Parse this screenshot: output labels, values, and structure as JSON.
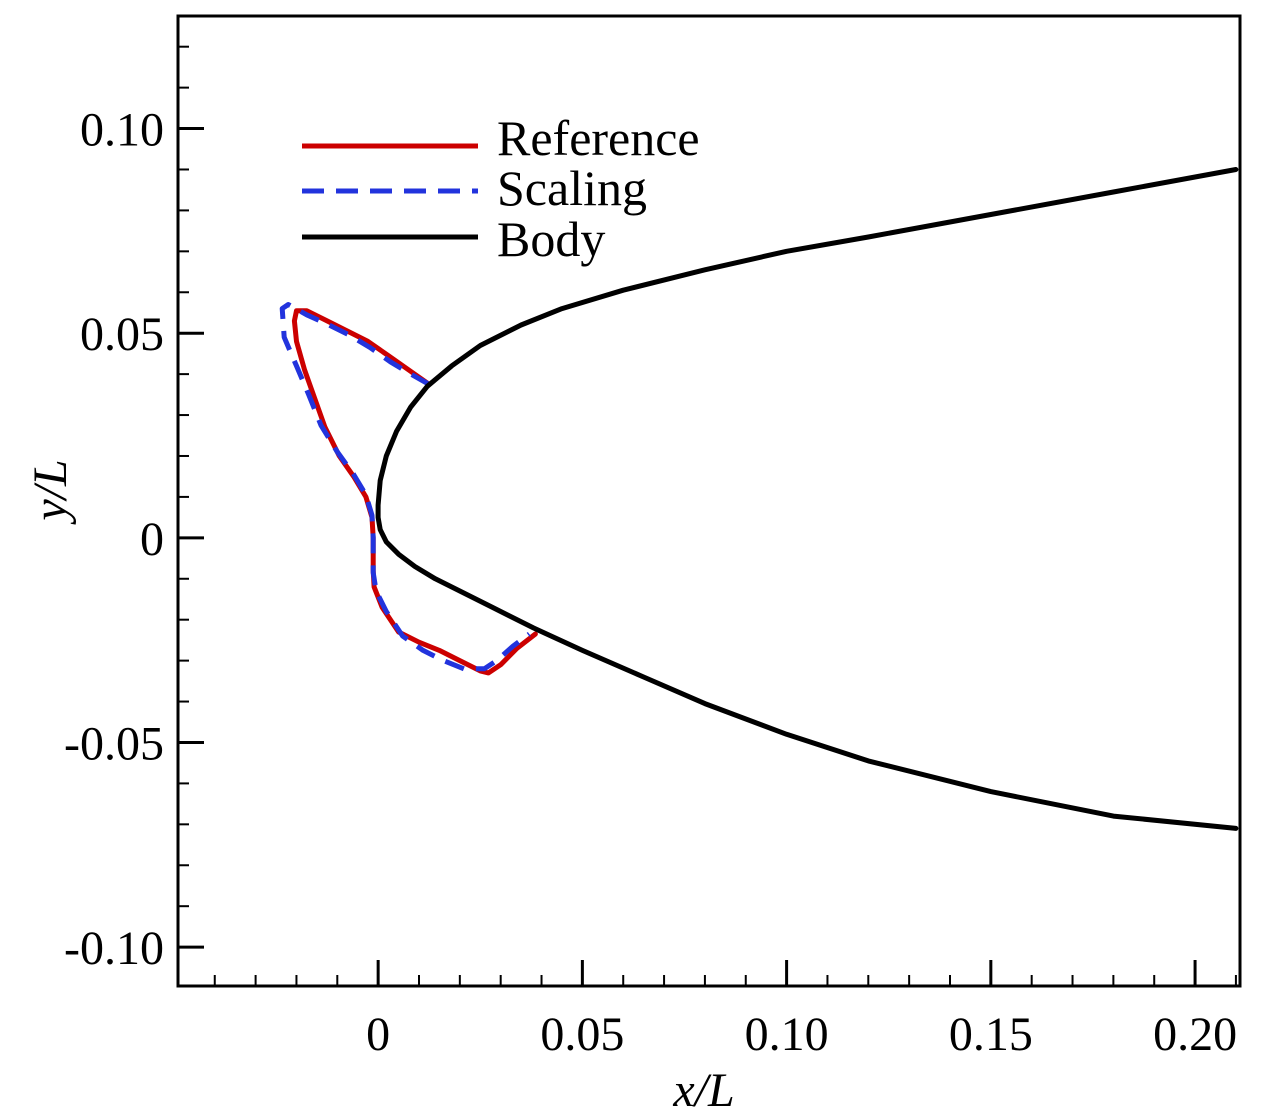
{
  "chart_data": {
    "type": "line",
    "title": "",
    "xlabel": "x/L",
    "ylabel": "y/L",
    "xlim": [
      -0.049,
      0.211
    ],
    "ylim": [
      -0.1095,
      0.1275
    ],
    "x_ticks": [
      {
        "value": 0,
        "label": "0"
      },
      {
        "value": 0.05,
        "label": "0.05"
      },
      {
        "value": 0.1,
        "label": "0.10"
      },
      {
        "value": 0.15,
        "label": "0.15"
      },
      {
        "value": 0.2,
        "label": "0.20"
      }
    ],
    "y_ticks": [
      {
        "value": 0.1,
        "label": "0.10"
      },
      {
        "value": 0.05,
        "label": "0.05"
      },
      {
        "value": 0,
        "label": "0"
      },
      {
        "value": -0.05,
        "label": "-0.05"
      },
      {
        "value": -0.1,
        "label": "-0.10"
      }
    ],
    "x_minor_step": 0.01,
    "y_minor_step": 0.01,
    "grid": false,
    "legend_position": "top-left",
    "series": [
      {
        "name": "Reference",
        "color": "#cc0000",
        "style": "solid",
        "x": [
          0.0125,
          0.0075,
          0.0025,
          -0.0025,
          -0.0075,
          -0.0125,
          -0.0175,
          -0.02,
          -0.0205,
          -0.02,
          -0.018,
          -0.0155,
          -0.013,
          -0.0095,
          -0.006,
          -0.003,
          -0.0015,
          -0.0012,
          -0.0012,
          -0.001,
          0.001,
          0.005,
          0.01,
          0.015,
          0.02,
          0.025,
          0.027,
          0.03,
          0.034,
          0.0385
        ],
        "y": [
          0.0375,
          0.041,
          0.0445,
          0.048,
          0.0505,
          0.053,
          0.0555,
          0.0555,
          0.053,
          0.048,
          0.041,
          0.034,
          0.027,
          0.02,
          0.015,
          0.01,
          0.005,
          0.0,
          -0.008,
          -0.012,
          -0.017,
          -0.023,
          -0.0255,
          -0.0275,
          -0.03,
          -0.0325,
          -0.033,
          -0.031,
          -0.027,
          -0.0235
        ]
      },
      {
        "name": "Scaling",
        "color": "#2233dd",
        "style": "dashed",
        "x": [
          0.0125,
          0.008,
          0.003,
          -0.002,
          -0.007,
          -0.012,
          -0.0175,
          -0.022,
          -0.0235,
          -0.023,
          -0.02,
          -0.017,
          -0.014,
          -0.01,
          -0.006,
          -0.003,
          -0.0015,
          -0.0012,
          -0.0012,
          -0.0005,
          0.002,
          0.006,
          0.011,
          0.016,
          0.021,
          0.0245,
          0.026,
          0.029,
          0.033,
          0.037
        ],
        "y": [
          0.0375,
          0.04,
          0.043,
          0.0465,
          0.0495,
          0.052,
          0.0545,
          0.057,
          0.056,
          0.049,
          0.042,
          0.035,
          0.0275,
          0.021,
          0.0155,
          0.0105,
          0.0055,
          0.0,
          -0.0085,
          -0.013,
          -0.018,
          -0.024,
          -0.0275,
          -0.03,
          -0.032,
          -0.032,
          -0.032,
          -0.03,
          -0.0265,
          -0.0235
        ]
      },
      {
        "name": "Body",
        "color": "#000000",
        "style": "solid",
        "x": [
          0.21,
          0.18,
          0.15,
          0.12,
          0.1,
          0.08,
          0.06,
          0.045,
          0.035,
          0.025,
          0.018,
          0.012,
          0.008,
          0.0045,
          0.002,
          0.0005,
          0.0,
          0.0,
          0.0005,
          0.002,
          0.005,
          0.009,
          0.014,
          0.02,
          0.028,
          0.038,
          0.05,
          0.065,
          0.08,
          0.1,
          0.12,
          0.15,
          0.18,
          0.21
        ],
        "y": [
          0.09,
          0.0845,
          0.079,
          0.0735,
          0.07,
          0.0655,
          0.0605,
          0.056,
          0.052,
          0.047,
          0.042,
          0.037,
          0.032,
          0.026,
          0.02,
          0.014,
          0.008,
          0.005,
          0.002,
          -0.001,
          -0.004,
          -0.007,
          -0.01,
          -0.013,
          -0.017,
          -0.022,
          -0.0275,
          -0.034,
          -0.0405,
          -0.048,
          -0.0545,
          -0.062,
          -0.068,
          -0.071
        ]
      }
    ]
  }
}
